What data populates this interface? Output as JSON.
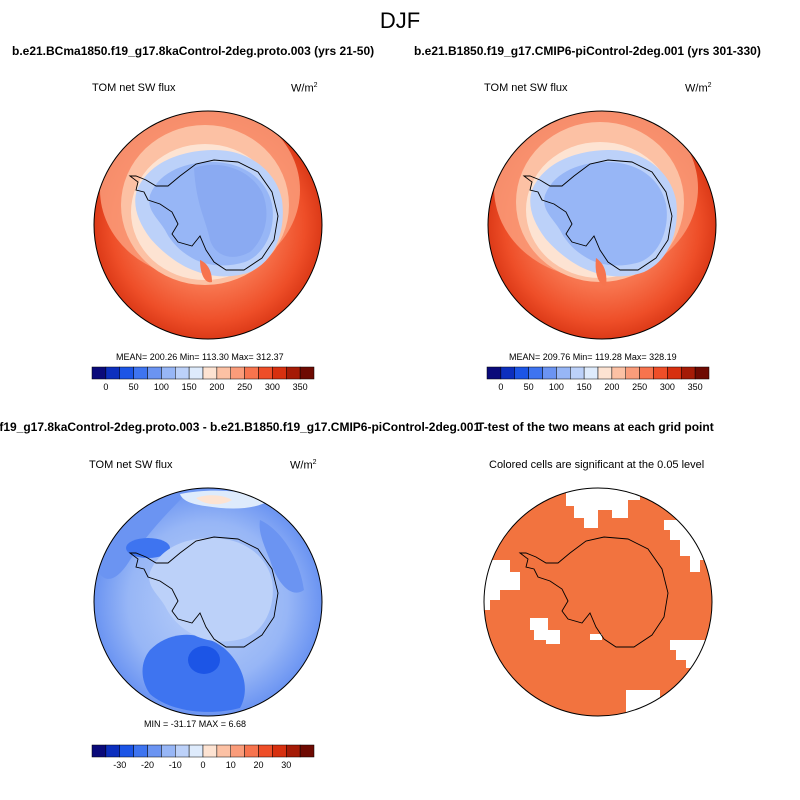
{
  "figure": {
    "title": "DJF"
  },
  "panels": [
    {
      "id": "control",
      "title": "b.e21.BCma1850.f19_g17.8kaControl-2deg.proto.003 (yrs 21-50)",
      "left_label": "TOM net SW flux",
      "right_label": "W/m",
      "right_label_sup": "2",
      "stats": "MEAN= 200.26  Min= 113.30  Max= 312.37"
    },
    {
      "id": "cmip6",
      "title": "b.e21.B1850.f19_g17.CMIP6-piControl-2deg.001 (yrs 301-330)",
      "left_label": "TOM net SW flux",
      "right_label": "W/m",
      "right_label_sup": "2",
      "stats": "MEAN= 209.76  Min= 119.28  Max= 328.19"
    },
    {
      "id": "difference",
      "title": ".f19_g17.8kaControl-2deg.proto.003 - b.e21.B1850.f19_g17.CMIP6-piControl-2deg.001",
      "left_label": "TOM net SW flux",
      "right_label": "W/m",
      "right_label_sup": "2",
      "stats": "MIN = -31.17 MAX =   6.68"
    },
    {
      "id": "ttest",
      "title": "T-test of the two means at each grid point",
      "subtitle": "Colored cells are significant at the 0.05 level"
    }
  ],
  "chart_data": [
    {
      "type": "heatmap",
      "projection": "south-polar-stereographic",
      "title": "b.e21.BCma1850.f19_g17.8kaControl-2deg.proto.003 (yrs 21-50)",
      "variable": "TOM net SW flux",
      "units": "W/m2",
      "colorbar": {
        "levels": [
          0,
          25,
          50,
          75,
          100,
          125,
          150,
          175,
          200,
          225,
          250,
          275,
          300,
          325,
          350
        ],
        "tick_labels": [
          "0",
          "50",
          "100",
          "150",
          "200",
          "250",
          "300",
          "350"
        ],
        "colors": [
          "#0a0a7a",
          "#0c2fbe",
          "#1c55e6",
          "#3e74f0",
          "#6b94f2",
          "#97b6f6",
          "#bcd1f9",
          "#deebfc",
          "#fde3d2",
          "#fcc1a4",
          "#fa9c7a",
          "#f7744e",
          "#ee4e28",
          "#d7300f",
          "#a51b06",
          "#6e0a02"
        ]
      },
      "mean": 200.26,
      "min": 113.3,
      "max": 312.37
    },
    {
      "type": "heatmap",
      "projection": "south-polar-stereographic",
      "title": "b.e21.B1850.f19_g17.CMIP6-piControl-2deg.001 (yrs 301-330)",
      "variable": "TOM net SW flux",
      "units": "W/m2",
      "colorbar": {
        "levels": [
          0,
          25,
          50,
          75,
          100,
          125,
          150,
          175,
          200,
          225,
          250,
          275,
          300,
          325,
          350
        ],
        "tick_labels": [
          "0",
          "50",
          "100",
          "150",
          "200",
          "250",
          "300",
          "350"
        ],
        "colors": [
          "#0a0a7a",
          "#0c2fbe",
          "#1c55e6",
          "#3e74f0",
          "#6b94f2",
          "#97b6f6",
          "#bcd1f9",
          "#deebfc",
          "#fde3d2",
          "#fcc1a4",
          "#fa9c7a",
          "#f7744e",
          "#ee4e28",
          "#d7300f",
          "#a51b06",
          "#6e0a02"
        ]
      },
      "mean": 209.76,
      "min": 119.28,
      "max": 328.19
    },
    {
      "type": "heatmap",
      "projection": "south-polar-stereographic",
      "title": ".f19_g17.8kaControl-2deg.proto.003 - b.e21.B1850.f19_g17.CMIP6-piControl-2deg.001",
      "variable": "TOM net SW flux",
      "units": "W/m2",
      "colorbar": {
        "levels": [
          -35,
          -30,
          -25,
          -20,
          -15,
          -10,
          -5,
          0,
          5,
          10,
          15,
          20,
          25,
          30,
          35
        ],
        "tick_labels": [
          "-30",
          "-20",
          "-10",
          "0",
          "10",
          "20",
          "30"
        ],
        "colors": [
          "#0a0a7a",
          "#0c2fbe",
          "#1c55e6",
          "#3e74f0",
          "#6b94f2",
          "#97b6f6",
          "#bcd1f9",
          "#deebfc",
          "#fde3d2",
          "#fcc1a4",
          "#fa9c7a",
          "#f7744e",
          "#ee4e28",
          "#d7300f",
          "#a51b06",
          "#6e0a02"
        ]
      },
      "min": -31.17,
      "max": 6.68
    },
    {
      "type": "heatmap",
      "projection": "south-polar-stereographic",
      "title": "T-test of the two means at each grid point",
      "subtitle": "Colored cells are significant at the 0.05 level",
      "significance_level": 0.05,
      "significant_color": "#f2733f"
    }
  ]
}
